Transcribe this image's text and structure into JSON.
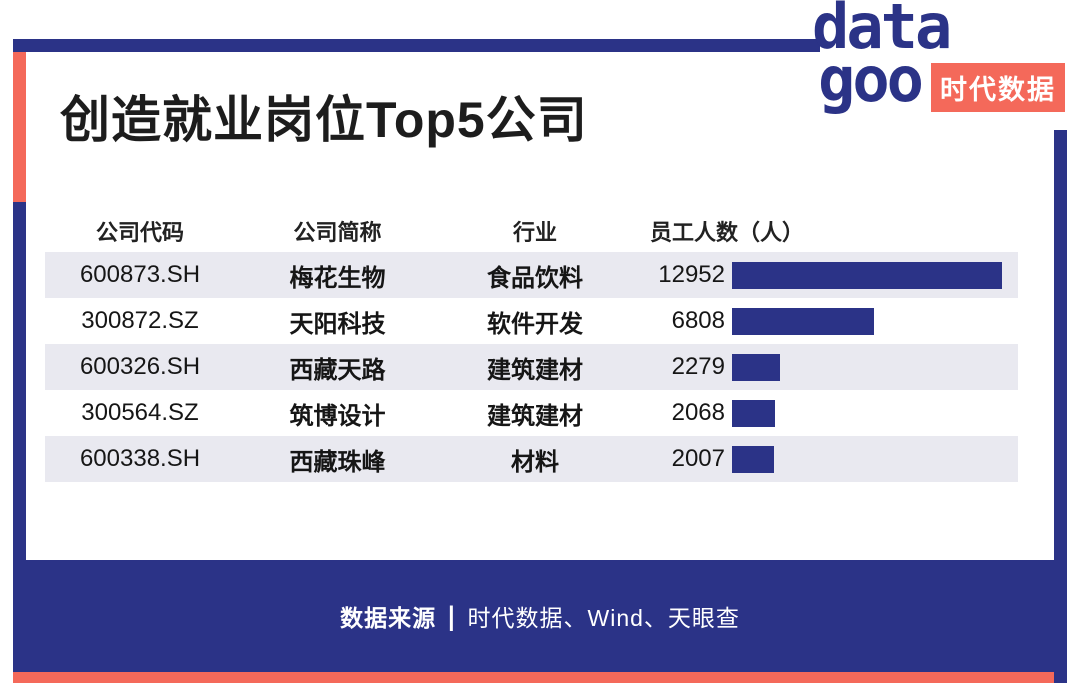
{
  "title": "创造就业岗位Top5公司",
  "logo": {
    "line1": "data",
    "line2": "goo",
    "badge": "时代数据"
  },
  "colors": {
    "navy": "#2b3387",
    "coral": "#f4695a",
    "row_alt": "#e9e9f0",
    "bar": "#2b3387"
  },
  "table": {
    "headers": [
      "公司代码",
      "公司简称",
      "行业",
      "员工人数（人）"
    ],
    "rows": [
      {
        "code": "600873.SH",
        "name": "梅花生物",
        "industry": "食品饮料",
        "employees": 12952
      },
      {
        "code": "300872.SZ",
        "name": "天阳科技",
        "industry": "软件开发",
        "employees": 6808
      },
      {
        "code": "600326.SH",
        "name": "西藏天路",
        "industry": "建筑建材",
        "employees": 2279
      },
      {
        "code": "300564.SZ",
        "name": "筑博设计",
        "industry": "建筑建材",
        "employees": 2068
      },
      {
        "code": "600338.SH",
        "name": "西藏珠峰",
        "industry": "材料",
        "employees": 2007
      }
    ]
  },
  "footer": {
    "label": "数据来源",
    "separator": "|",
    "sources": "时代数据、Wind、天眼查"
  },
  "chart_data": {
    "type": "bar",
    "orientation": "horizontal",
    "title": "创造就业岗位Top5公司",
    "categories": [
      "梅花生物",
      "天阳科技",
      "西藏天路",
      "筑博设计",
      "西藏珠峰"
    ],
    "values": [
      12952,
      6808,
      2279,
      2068,
      2007
    ],
    "value_label": "员工人数（人）",
    "xlim": [
      0,
      12952
    ],
    "bar_color": "#2b3387",
    "data_labels": true,
    "legend": false,
    "grid": false
  }
}
